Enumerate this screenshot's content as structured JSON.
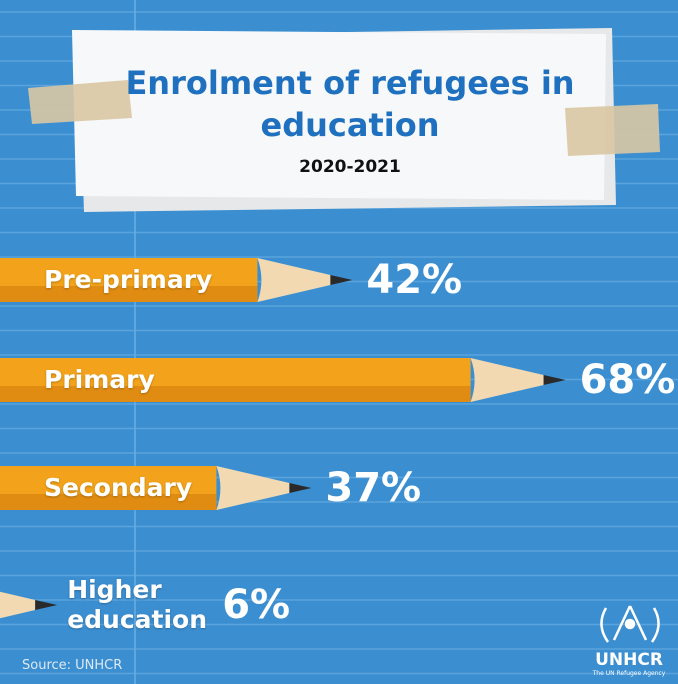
{
  "chart_data": {
    "type": "bar",
    "title": "Enrolment of refugees in education",
    "subtitle": "2020-2021",
    "categories": [
      "Pre-primary",
      "Primary",
      "Secondary",
      "Higher education"
    ],
    "values": [
      42,
      68,
      37,
      6
    ],
    "value_labels": [
      "42%",
      "68%",
      "37%",
      "6%"
    ],
    "color": "#f2a31b",
    "source": "Source: UNHCR",
    "logo": {
      "name": "UNHCR",
      "tagline": "The UN Refugee Agency"
    }
  }
}
